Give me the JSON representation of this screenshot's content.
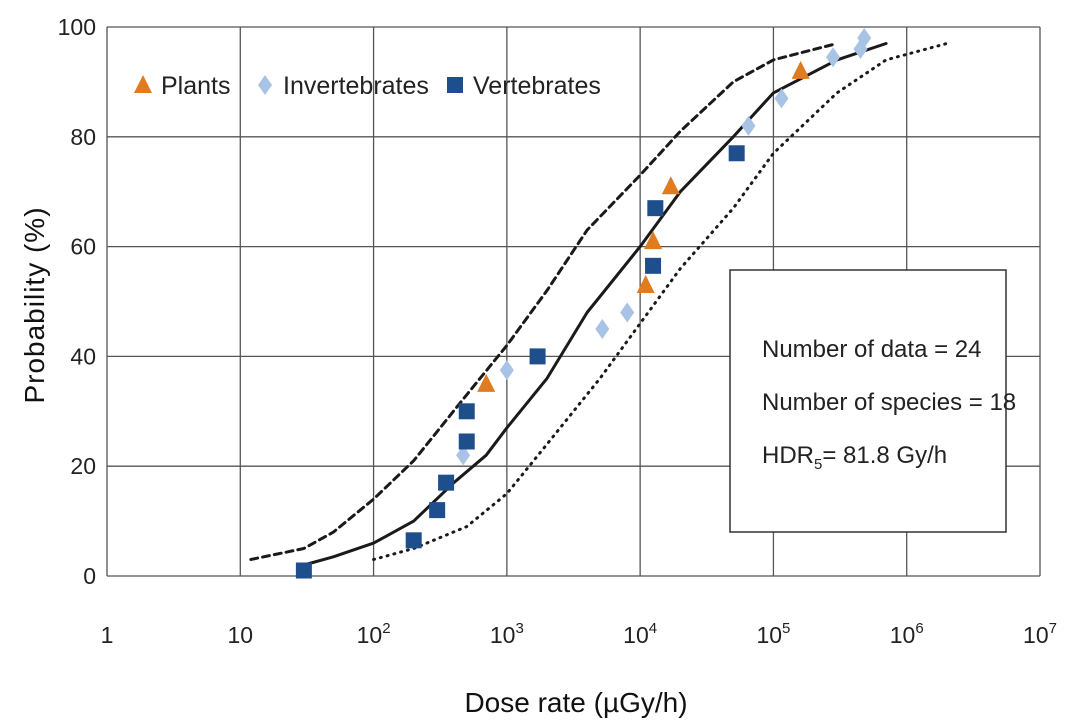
{
  "chart_data": {
    "type": "scatter",
    "xlabel": "Dose rate (µGy/h)",
    "ylabel": "Probability (%)",
    "x_scale": "log",
    "xlim": [
      1,
      10000000
    ],
    "ylim": [
      0,
      100
    ],
    "grid": true,
    "legend_position": "top-left",
    "x_ticks": [
      {
        "value": 1,
        "base": "1",
        "exp": ""
      },
      {
        "value": 10,
        "base": "10",
        "exp": ""
      },
      {
        "value": 100,
        "base": "10",
        "exp": "2"
      },
      {
        "value": 1000,
        "base": "10",
        "exp": "3"
      },
      {
        "value": 10000,
        "base": "10",
        "exp": "4"
      },
      {
        "value": 100000,
        "base": "10",
        "exp": "5"
      },
      {
        "value": 1000000,
        "base": "10",
        "exp": "6"
      },
      {
        "value": 10000000,
        "base": "10",
        "exp": "7"
      }
    ],
    "y_ticks": [
      0,
      20,
      40,
      60,
      80,
      100
    ],
    "series": [
      {
        "name": "Plants",
        "marker": "triangle",
        "color": "#e07b1f",
        "points": [
          [
            700,
            35
          ],
          [
            11000,
            53
          ],
          [
            12500,
            61
          ],
          [
            17000,
            71
          ],
          [
            160000,
            92
          ]
        ]
      },
      {
        "name": "Invertebrates",
        "marker": "diamond",
        "color": "#a9c3e6",
        "points": [
          [
            470,
            22
          ],
          [
            1000,
            37.5
          ],
          [
            5200,
            45
          ],
          [
            8000,
            48
          ],
          [
            65000,
            82
          ],
          [
            115000,
            87
          ],
          [
            280000,
            94.5
          ],
          [
            450000,
            96
          ],
          [
            480000,
            98
          ]
        ]
      },
      {
        "name": "Vertebrates",
        "marker": "square",
        "color": "#1f4e8c",
        "points": [
          [
            30,
            1
          ],
          [
            200,
            6.5
          ],
          [
            300,
            12
          ],
          [
            350,
            17
          ],
          [
            500,
            24.5
          ],
          [
            500,
            30
          ],
          [
            1700,
            40
          ],
          [
            12500,
            56.5
          ],
          [
            13000,
            67
          ],
          [
            53000,
            77
          ]
        ]
      }
    ],
    "curves": [
      {
        "style": "dashed",
        "points": [
          [
            12,
            3
          ],
          [
            30,
            5
          ],
          [
            50,
            8
          ],
          [
            100,
            14
          ],
          [
            200,
            21
          ],
          [
            500,
            33
          ],
          [
            1000,
            42
          ],
          [
            2000,
            52
          ],
          [
            4000,
            63
          ],
          [
            10000,
            73
          ],
          [
            20000,
            81
          ],
          [
            50000,
            90
          ],
          [
            100000,
            94
          ],
          [
            300000,
            97
          ]
        ]
      },
      {
        "style": "solid",
        "points": [
          [
            30,
            2
          ],
          [
            50,
            3.5
          ],
          [
            100,
            6
          ],
          [
            200,
            10
          ],
          [
            400,
            17
          ],
          [
            700,
            22
          ],
          [
            1000,
            27
          ],
          [
            2000,
            36
          ],
          [
            4000,
            48
          ],
          [
            10000,
            60
          ],
          [
            20000,
            70
          ],
          [
            50000,
            80
          ],
          [
            100000,
            88
          ],
          [
            300000,
            94
          ],
          [
            700000,
            97
          ]
        ]
      },
      {
        "style": "dotted",
        "points": [
          [
            100,
            3
          ],
          [
            200,
            5
          ],
          [
            500,
            9
          ],
          [
            1000,
            15
          ],
          [
            2000,
            24
          ],
          [
            5000,
            36
          ],
          [
            10000,
            46
          ],
          [
            20000,
            56
          ],
          [
            50000,
            67
          ],
          [
            100000,
            77
          ],
          [
            300000,
            88
          ],
          [
            700000,
            94
          ],
          [
            2000000,
            97
          ]
        ]
      }
    ],
    "stats": {
      "line1": "Number of data = 24",
      "line2": "Number of species = 18",
      "line3_base": "HDR",
      "line3_sub": "5",
      "line3_rest": "= 81.8 Gy/h"
    }
  }
}
